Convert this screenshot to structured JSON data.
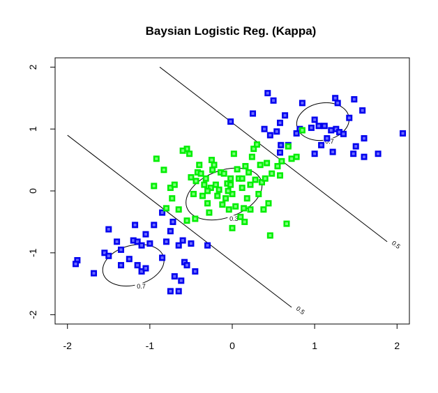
{
  "chart_data": {
    "type": "scatter",
    "title": "Baysian Logistic Reg. (Kappa)",
    "xlabel": "",
    "ylabel": "",
    "xlim": [
      -2.15,
      2.15
    ],
    "ylim": [
      -2.15,
      2.15
    ],
    "xticks": [
      -2,
      -1,
      0,
      1,
      2
    ],
    "yticks": [
      -2,
      -1,
      0,
      1,
      2
    ],
    "xtick_labels": [
      "-2",
      "-1",
      "0",
      "1",
      "2"
    ],
    "ytick_labels": [
      "-2",
      "-1",
      "0",
      "1",
      "2"
    ],
    "grid": false,
    "legend": "none",
    "series": [
      {
        "color": "#0000ee",
        "marker_inner": "#6a6aff",
        "points": [
          [
            0.43,
            1.58
          ],
          [
            0.5,
            1.46
          ],
          [
            0.25,
            1.25
          ],
          [
            0.64,
            1.22
          ],
          [
            0.39,
            1.0
          ],
          [
            0.54,
            0.96
          ],
          [
            0.58,
            1.1
          ],
          [
            0.46,
            0.9
          ],
          [
            0.68,
            0.74
          ],
          [
            0.59,
            0.74
          ],
          [
            0.58,
            0.62
          ],
          [
            0.82,
            1.0
          ],
          [
            -0.02,
            1.12
          ],
          [
            0.85,
            1.42
          ],
          [
            0.96,
            1.02
          ],
          [
            1.0,
            1.15
          ],
          [
            1.05,
            1.05
          ],
          [
            1.12,
            1.05
          ],
          [
            1.2,
            0.98
          ],
          [
            1.26,
            1.0
          ],
          [
            1.3,
            0.95
          ],
          [
            1.35,
            0.92
          ],
          [
            1.15,
            0.85
          ],
          [
            1.22,
            0.63
          ],
          [
            1.0,
            0.6
          ],
          [
            0.78,
            0.93
          ],
          [
            1.42,
            1.18
          ],
          [
            1.48,
            1.48
          ],
          [
            1.58,
            1.3
          ],
          [
            1.6,
            0.85
          ],
          [
            1.5,
            0.72
          ],
          [
            1.6,
            0.55
          ],
          [
            1.77,
            0.6
          ],
          [
            2.07,
            0.93
          ],
          [
            1.25,
            1.5
          ],
          [
            1.08,
            0.74
          ],
          [
            1.47,
            0.6
          ],
          [
            1.28,
            1.42
          ],
          [
            -1.88,
            -1.12
          ],
          [
            -1.9,
            -1.18
          ],
          [
            -1.68,
            -1.33
          ],
          [
            -1.55,
            -1.0
          ],
          [
            -1.5,
            -1.05
          ],
          [
            -1.5,
            -0.62
          ],
          [
            -1.4,
            -0.82
          ],
          [
            -1.35,
            -0.95
          ],
          [
            -1.25,
            -1.1
          ],
          [
            -1.2,
            -0.8
          ],
          [
            -1.15,
            -0.82
          ],
          [
            -1.1,
            -0.88
          ],
          [
            -1.05,
            -0.7
          ],
          [
            -1.0,
            -0.85
          ],
          [
            -1.15,
            -1.2
          ],
          [
            -1.1,
            -1.3
          ],
          [
            -1.05,
            -1.25
          ],
          [
            -0.95,
            -0.55
          ],
          [
            -0.85,
            -1.08
          ],
          [
            -0.8,
            -0.82
          ],
          [
            -0.75,
            -0.65
          ],
          [
            -0.72,
            -0.5
          ],
          [
            -0.7,
            -1.38
          ],
          [
            -0.65,
            -0.88
          ],
          [
            -0.62,
            -1.45
          ],
          [
            -0.6,
            -0.8
          ],
          [
            -0.58,
            -1.15
          ],
          [
            -0.55,
            -1.2
          ],
          [
            -0.5,
            -0.85
          ],
          [
            -0.45,
            -1.3
          ],
          [
            -0.3,
            -0.88
          ],
          [
            -0.75,
            -1.62
          ],
          [
            -0.85,
            -0.35
          ],
          [
            -1.18,
            -0.55
          ],
          [
            -0.65,
            -1.62
          ],
          [
            -1.35,
            -1.2
          ]
        ]
      },
      {
        "color": "#00ee00",
        "marker_inner": "#77ff77",
        "points": [
          [
            -0.95,
            0.08
          ],
          [
            -0.92,
            0.52
          ],
          [
            -0.83,
            0.34
          ],
          [
            -0.75,
            0.05
          ],
          [
            -0.73,
            -0.12
          ],
          [
            -0.7,
            0.1
          ],
          [
            -0.65,
            -0.3
          ],
          [
            -0.55,
            0.68
          ],
          [
            -0.52,
            0.6
          ],
          [
            -0.5,
            0.22
          ],
          [
            -0.47,
            -0.05
          ],
          [
            -0.44,
            0.16
          ],
          [
            -0.42,
            0.3
          ],
          [
            -0.4,
            0.42
          ],
          [
            -0.38,
            0.28
          ],
          [
            -0.36,
            -0.08
          ],
          [
            -0.34,
            0.1
          ],
          [
            -0.32,
            0.2
          ],
          [
            -0.3,
            -0.2
          ],
          [
            -0.28,
            -0.35
          ],
          [
            -0.26,
            0.05
          ],
          [
            -0.24,
            0.34
          ],
          [
            -0.22,
            0.42
          ],
          [
            -0.2,
            0.1
          ],
          [
            -0.18,
            -0.08
          ],
          [
            -0.16,
            0.02
          ],
          [
            -0.14,
            0.3
          ],
          [
            -0.12,
            -0.22
          ],
          [
            -0.1,
            0.28
          ],
          [
            -0.08,
            -0.12
          ],
          [
            -0.06,
            0.12
          ],
          [
            -0.04,
            -0.3
          ],
          [
            -0.02,
            0.1
          ],
          [
            0.0,
            -0.05
          ],
          [
            0.02,
            0.6
          ],
          [
            0.04,
            -0.25
          ],
          [
            0.06,
            0.35
          ],
          [
            0.08,
            0.2
          ],
          [
            0.1,
            -0.42
          ],
          [
            0.12,
            0.05
          ],
          [
            0.14,
            -0.28
          ],
          [
            0.16,
            0.4
          ],
          [
            0.18,
            -0.12
          ],
          [
            0.2,
            0.3
          ],
          [
            0.22,
            -0.3
          ],
          [
            0.24,
            0.55
          ],
          [
            0.26,
            0.68
          ],
          [
            0.28,
            0.18
          ],
          [
            0.3,
            0.75
          ],
          [
            0.32,
            -0.05
          ],
          [
            0.34,
            0.42
          ],
          [
            0.36,
            0.14
          ],
          [
            0.38,
            -0.3
          ],
          [
            0.4,
            0.2
          ],
          [
            0.42,
            0.45
          ],
          [
            0.44,
            -0.2
          ],
          [
            0.46,
            -0.72
          ],
          [
            0.48,
            0.28
          ],
          [
            0.55,
            0.4
          ],
          [
            0.58,
            0.25
          ],
          [
            0.6,
            0.48
          ],
          [
            0.66,
            -0.53
          ],
          [
            0.68,
            0.72
          ],
          [
            0.72,
            0.52
          ],
          [
            0.78,
            0.55
          ],
          [
            0.85,
            0.98
          ],
          [
            -0.6,
            0.65
          ],
          [
            -0.3,
            0.0
          ],
          [
            -0.05,
            0.0
          ],
          [
            -0.45,
            -0.45
          ],
          [
            -0.55,
            -0.48
          ],
          [
            0.12,
            0.2
          ],
          [
            0.22,
            0.1
          ],
          [
            -0.02,
            0.2
          ],
          [
            0.0,
            -0.6
          ],
          [
            -0.25,
            0.5
          ],
          [
            0.15,
            -0.5
          ],
          [
            -0.8,
            -0.28
          ]
        ]
      }
    ],
    "contours": [
      {
        "level": 0.5,
        "kind": "line",
        "from": [
          -2.0,
          0.9
        ],
        "to": [
          0.72,
          -1.88
        ],
        "label": "0.5"
      },
      {
        "level": 0.5,
        "kind": "line",
        "from": [
          -0.88,
          2.0
        ],
        "to": [
          1.88,
          -0.82
        ],
        "label": "0.5"
      },
      {
        "level": 0.3,
        "kind": "ellipse",
        "center": [
          -0.1,
          -0.05
        ],
        "rx": 0.48,
        "ry": 0.38,
        "rotation": -20,
        "label": "0.3"
      },
      {
        "level": 0.7,
        "kind": "ellipse",
        "center": [
          -1.2,
          -1.2
        ],
        "rx": 0.38,
        "ry": 0.32,
        "rotation": -15,
        "label": "0.7"
      },
      {
        "level": 0.7,
        "kind": "ellipse",
        "center": [
          1.1,
          1.12
        ],
        "rx": 0.32,
        "ry": 0.3,
        "rotation": -10,
        "label": "0.7"
      }
    ]
  }
}
